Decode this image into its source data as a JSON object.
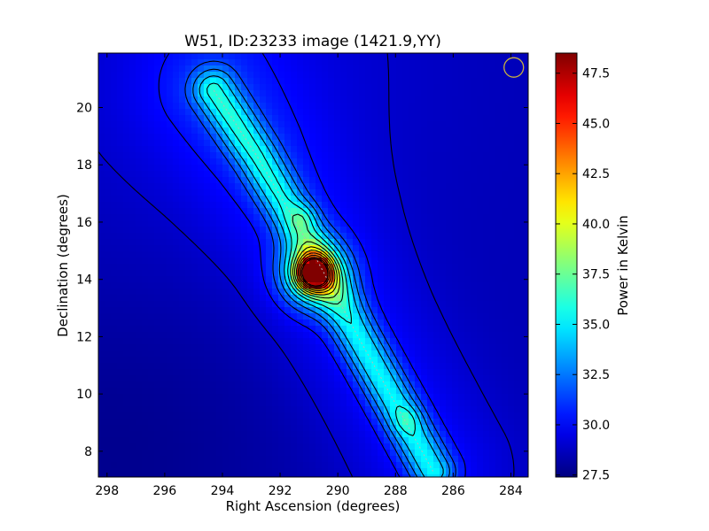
{
  "chart_data": {
    "type": "heatmap",
    "title": "W51, ID:23233 image (1421.9,YY)",
    "xlabel": "Right Ascension (degrees)",
    "ylabel": "Declination (degrees)",
    "xlim": [
      298.3,
      283.4
    ],
    "ylim": [
      7.1,
      21.9
    ],
    "x_ticks": [
      298,
      296,
      294,
      292,
      290,
      288,
      286,
      284
    ],
    "y_ticks": [
      8,
      10,
      12,
      14,
      16,
      18,
      20
    ],
    "colorbar": {
      "label": "Power in Kelvin",
      "min": 27.4,
      "max": 48.5,
      "ticks": [
        "27.5",
        "30.0",
        "32.5",
        "35.0",
        "37.5",
        "40.0",
        "42.5",
        "45.0",
        "47.5"
      ],
      "colormap": "jet"
    },
    "background_kelvin": 28.5,
    "sources": [
      {
        "name": "main peak",
        "ra": 290.85,
        "dec": 14.2,
        "peak_kelvin": 48.0
      },
      {
        "name": "north knot",
        "ra": 291.2,
        "dec": 16.15,
        "peak_kelvin": 35.0
      },
      {
        "name": "south knot",
        "ra": 287.6,
        "dec": 9.1,
        "peak_kelvin": 34.5
      }
    ],
    "ridge": [
      [
        294.3,
        20.6
      ],
      [
        292.8,
        18.3
      ],
      [
        291.0,
        15.2
      ],
      [
        289.3,
        12.0
      ],
      [
        287.8,
        9.3
      ],
      [
        286.7,
        7.3
      ]
    ],
    "beam_marker": {
      "ra": 283.9,
      "dec": 21.4
    },
    "colors": {
      "contours": "#000000",
      "ridge_line": "#b8b8b8",
      "beam_marker": "#c8b040"
    }
  }
}
